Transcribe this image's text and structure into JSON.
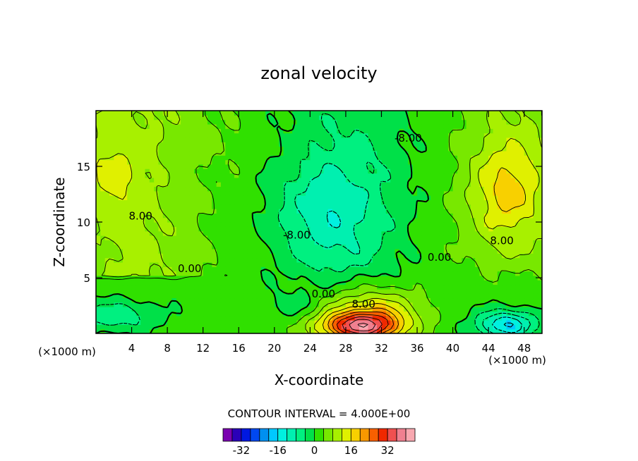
{
  "chart_data": {
    "type": "heatmap",
    "subtype": "filled-contour",
    "title": "zonal velocity",
    "xlabel": "X-coordinate",
    "ylabel": "Z-coordinate",
    "x_unit_note": "(×1000 m)",
    "y_unit_note": "(×1000 m)",
    "xlim": [
      0,
      50
    ],
    "ylim": [
      0,
      20
    ],
    "x_ticks": [
      4,
      8,
      12,
      16,
      20,
      24,
      28,
      32,
      36,
      40,
      44,
      48
    ],
    "y_ticks": [
      5,
      10,
      15
    ],
    "contour_interval_text": "CONTOUR INTERVAL = 4.000E+00",
    "contour_levels": [
      -36,
      -32,
      -28,
      -24,
      -20,
      -16,
      -12,
      -8,
      -4,
      0,
      4,
      8,
      12,
      16,
      20,
      24,
      28,
      32,
      36,
      40
    ],
    "colorbar_tick_labels": [
      "-32",
      "-16",
      "0",
      "16",
      "32"
    ],
    "colorbar_tick_values": [
      -32,
      -16,
      0,
      16,
      32
    ],
    "colorbar_colors": [
      "#7a00b0",
      "#2a00b8",
      "#0018e0",
      "#0048f0",
      "#0090f0",
      "#00c8ff",
      "#00f0e0",
      "#00f0b0",
      "#00f080",
      "#00e048",
      "#30e000",
      "#78e800",
      "#a8f000",
      "#e0f000",
      "#f8d000",
      "#f89800",
      "#f86000",
      "#f02800",
      "#f05050",
      "#f08090",
      "#f8a8b0"
    ],
    "contour_labels": [
      {
        "text": "8.00",
        "x": 5,
        "y": 10.5
      },
      {
        "text": "0.00",
        "x": 10.5,
        "y": 5.8
      },
      {
        "text": "-8.00",
        "x": 22.5,
        "y": 8.8
      },
      {
        "text": "-8.00",
        "x": 35,
        "y": 17.5
      },
      {
        "text": "0.00",
        "x": 25.5,
        "y": 3.5
      },
      {
        "text": "8.00",
        "x": 30,
        "y": 2.6
      },
      {
        "text": "0.00",
        "x": 38.5,
        "y": 6.8
      },
      {
        "text": "8.00",
        "x": 45.5,
        "y": 8.3
      }
    ]
  }
}
